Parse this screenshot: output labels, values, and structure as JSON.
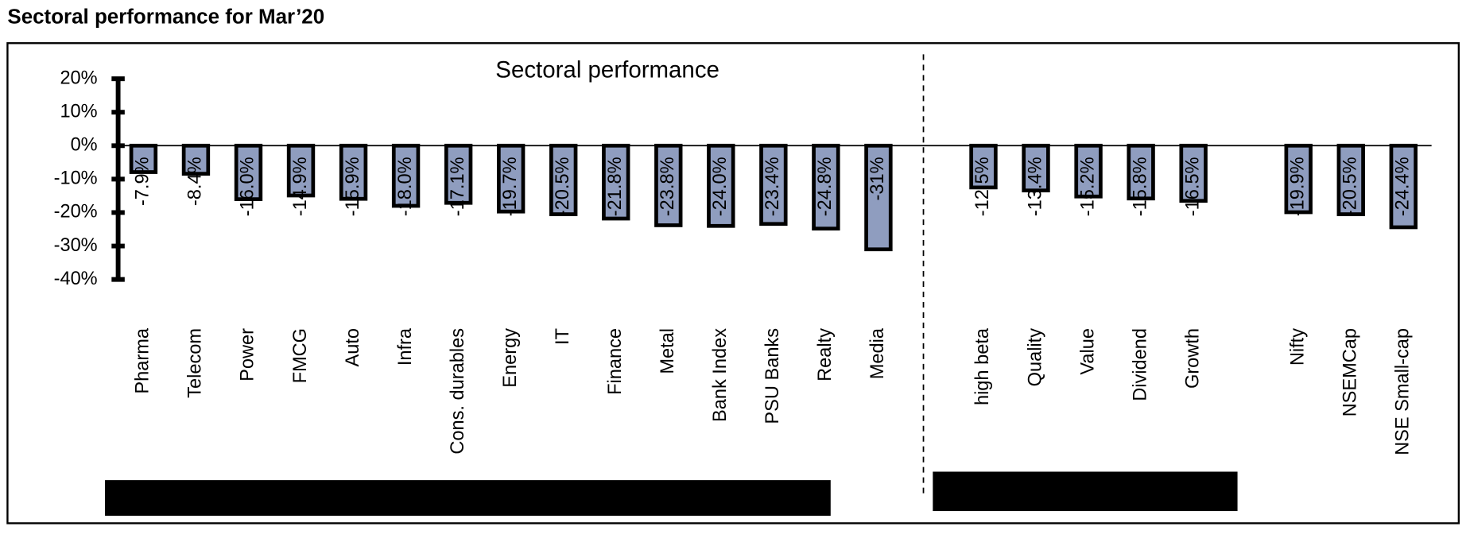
{
  "header": {
    "title": "Sectoral performance for Mar’20"
  },
  "chart_data": {
    "type": "bar",
    "title": "Sectoral performance",
    "categories": [
      "Pharma",
      "Telecom",
      "Power",
      "FMCG",
      "Auto",
      "Infra",
      "Cons. durables",
      "Energy",
      "IT",
      "Finance",
      "Metal",
      "Bank Index",
      "PSU Banks",
      "Realty",
      "Media",
      null,
      "high beta",
      "Quality",
      "Value",
      "Dividend",
      "Growth",
      null,
      "Nifty",
      "NSEMCap",
      "NSE Small-cap"
    ],
    "values": [
      -7.9,
      -8.4,
      -16.0,
      -14.9,
      -15.9,
      -18.0,
      -17.1,
      -19.7,
      -20.5,
      -21.8,
      -23.8,
      -24.0,
      -23.4,
      -24.8,
      -31,
      null,
      -12.5,
      -13.4,
      -15.2,
      -15.8,
      -16.5,
      null,
      -19.9,
      -20.5,
      -24.4
    ],
    "value_labels": [
      "-7.9%",
      "-8.4%",
      "-16.0%",
      "-14.9%",
      "-15.9%",
      "-18.0%",
      "-17.1%",
      "-19.7%",
      "-20.5%",
      "-21.8%",
      "-23.8%",
      "-24.0%",
      "-23.4%",
      "-24.8%",
      "-31%",
      null,
      "-12.5%",
      "-13.4%",
      "-15.2%",
      "-15.8%",
      "-16.5%",
      null,
      "-19.9%",
      "-20.5%",
      "-24.4%"
    ],
    "color": "#8f9dbf",
    "ylim": [
      -40,
      20
    ],
    "yticks": [
      {
        "value": 20,
        "label": "20%"
      },
      {
        "value": 10,
        "label": "10%"
      },
      {
        "value": 0,
        "label": "0%"
      },
      {
        "value": -10,
        "label": "-10%"
      },
      {
        "value": -20,
        "label": "-20%"
      },
      {
        "value": -30,
        "label": "-30%"
      },
      {
        "value": -40,
        "label": "-40%"
      }
    ],
    "grid": false
  }
}
